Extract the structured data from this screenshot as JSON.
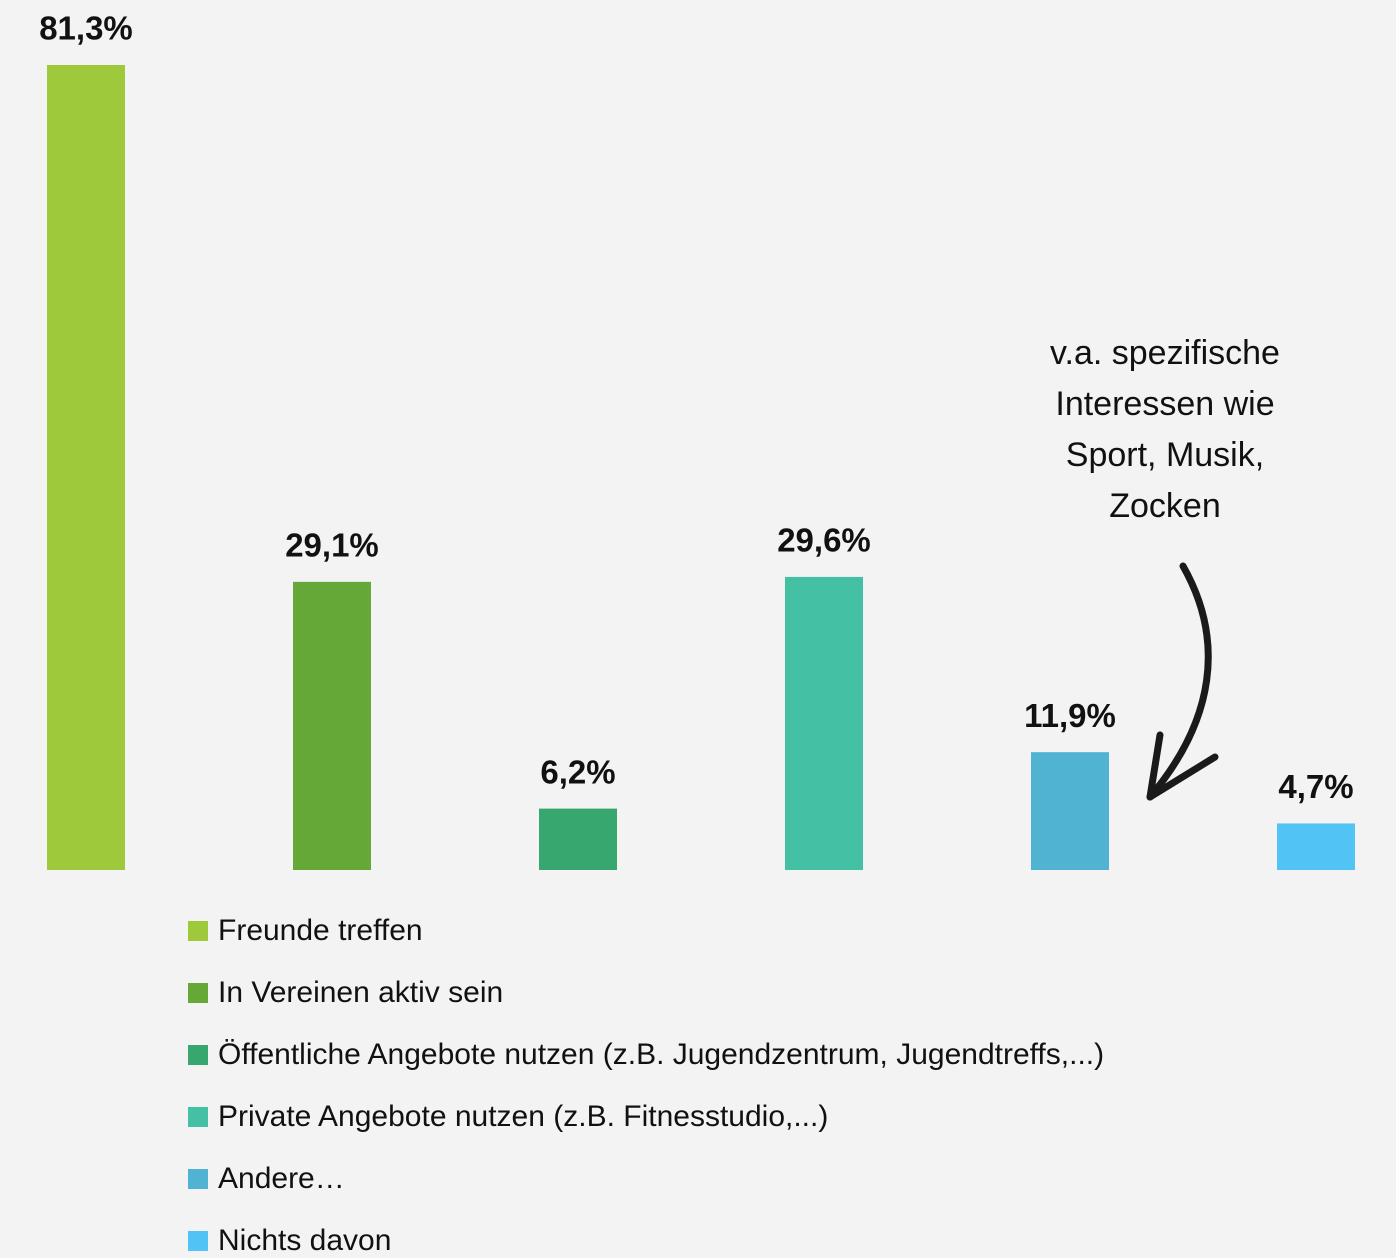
{
  "chart_data": {
    "type": "bar",
    "categories": [
      "Freunde treffen",
      "In Vereinen aktiv sein",
      "Öffentliche Angebote nutzen (z.B. Jugendzentrum, Jugendtreffs,...)",
      "Private Angebote nutzen (z.B. Fitnesstudio,...)",
      "Andere…",
      "Nichts davon"
    ],
    "values": [
      81.3,
      29.1,
      6.2,
      29.6,
      11.9,
      4.7
    ],
    "value_labels": [
      "81,3%",
      "29,1%",
      "6,2%",
      "29,6%",
      "11,9%",
      "4,7%"
    ],
    "colors": [
      "#9dc93b",
      "#65a838",
      "#37a66f",
      "#44c1a4",
      "#4fb3d1",
      "#52c3f5"
    ],
    "ylim": [
      0,
      81.3
    ],
    "annotation": "v.a. spezifische Interessen wie Sport, Musik, Zocken"
  }
}
